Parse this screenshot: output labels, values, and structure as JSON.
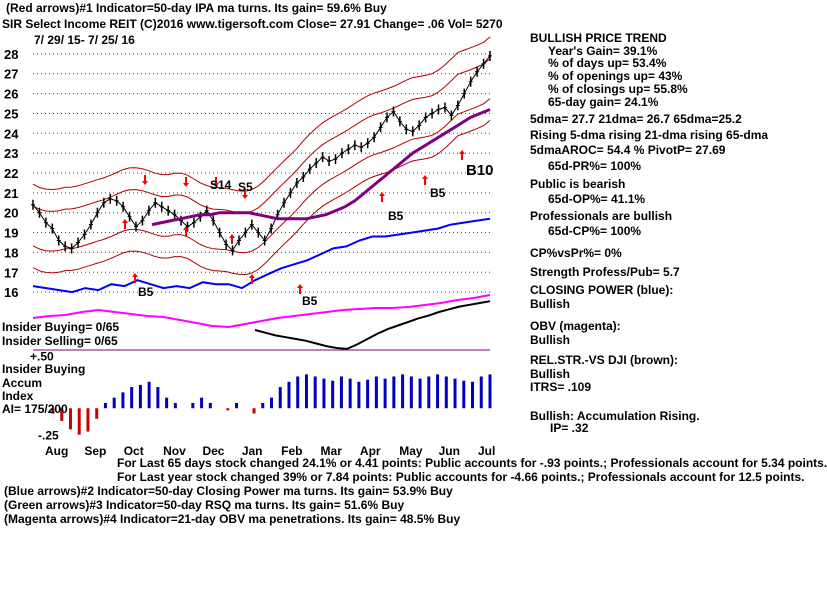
{
  "header": {
    "line1": "(Red arrows)#1 Indicator=50-day IPA ma turns. Its gain= 59.6% Buy",
    "line2": "SIR   Select Income REIT   (C)2016 www.tigersoft.com      Close=  27.91  Change= .06 Vol= 5270",
    "date_range": "7/ 29/ 15-  7/ 25/ 16"
  },
  "chart_data": {
    "type": "line",
    "price_axis": {
      "ticks": [
        28,
        27,
        26,
        25,
        24,
        23,
        22,
        21,
        20,
        19,
        18,
        17,
        16
      ],
      "ylim": [
        15.3,
        28.7
      ]
    },
    "months": [
      "Aug",
      "Sep",
      "Oct",
      "Nov",
      "Dec",
      "Jan",
      "Feb",
      "Mar",
      "Apr",
      "May",
      "Jun",
      "Jul"
    ],
    "price_path": [
      20.4,
      20.0,
      19.5,
      19.2,
      18.6,
      18.3,
      18.2,
      18.5,
      18.9,
      19.4,
      20.0,
      20.5,
      20.7,
      20.6,
      20.3,
      19.8,
      19.3,
      19.6,
      20.1,
      20.5,
      20.3,
      20.1,
      19.9,
      19.6,
      19.3,
      19.5,
      19.8,
      20.1,
      19.6,
      19.0,
      18.4,
      18.1,
      18.6,
      19.0,
      19.4,
      19.0,
      18.6,
      19.2,
      19.9,
      20.5,
      21.0,
      21.5,
      21.8,
      22.2,
      22.5,
      22.8,
      22.6,
      22.7,
      23.0,
      23.2,
      23.4,
      23.3,
      23.5,
      23.8,
      24.3,
      24.8,
      25.1,
      24.6,
      24.2,
      24.1,
      24.4,
      24.8,
      25.0,
      25.2,
      25.3,
      24.9,
      25.4,
      26.0,
      26.6,
      27.1,
      27.5,
      27.9
    ],
    "ma_path": [
      19.4,
      19.5,
      19.6,
      19.7,
      19.8,
      19.9,
      19.9,
      20.0,
      20.0,
      20.0,
      20.0,
      19.9,
      19.8,
      19.7,
      19.7,
      19.7,
      19.7,
      19.8,
      19.9,
      20.1,
      20.3,
      20.6,
      21.0,
      21.4,
      21.8,
      22.2,
      22.6,
      23.0,
      23.3,
      23.6,
      23.9,
      24.2,
      24.5,
      24.8,
      25.0,
      25.2
    ],
    "closing_power_path": [
      16.3,
      16.2,
      16.1,
      16.0,
      16.2,
      16.1,
      16.4,
      16.3,
      16.6,
      16.4,
      16.2,
      16.3,
      16.2,
      16.5,
      16.4,
      16.4,
      16.2,
      16.6,
      16.9,
      17.2,
      17.4,
      17.6,
      17.9,
      18.2,
      18.3,
      18.6,
      18.8,
      18.8,
      18.9,
      19.0,
      19.1,
      19.2,
      19.4,
      19.5,
      19.6,
      19.7
    ],
    "signals": [
      {
        "label": "S14",
        "color": "#000000"
      },
      {
        "label": "S5",
        "color": "#000000"
      },
      {
        "label": "B5",
        "color": "#000000"
      },
      {
        "label": "B5",
        "color": "#000000"
      },
      {
        "label": "B5",
        "color": "#000000"
      },
      {
        "label": "B5",
        "color": "#000000"
      },
      {
        "label": "B10",
        "color": "#000000"
      }
    ],
    "accum_values": [
      -0.05,
      -0.12,
      -0.2,
      -0.25,
      -0.22,
      -0.1,
      0.05,
      0.1,
      0.15,
      0.2,
      0.22,
      0.25,
      0.2,
      0.1,
      0.05,
      0.0,
      0.05,
      0.1,
      0.05,
      0.0,
      -0.02,
      0.05,
      0.0,
      -0.05,
      0.05,
      0.1,
      0.2,
      0.25,
      0.3,
      0.32,
      0.3,
      0.28,
      0.26,
      0.3,
      0.28,
      0.25,
      0.27,
      0.3,
      0.28,
      0.3,
      0.32,
      0.3,
      0.28,
      0.3,
      0.32,
      0.3,
      0.28,
      0.26,
      0.25,
      0.3,
      0.32
    ],
    "accum_axis": {
      "labels": [
        "+.50",
        "-.25"
      ],
      "ylim": [
        -0.3,
        0.55
      ]
    },
    "colors": {
      "price": "#000000",
      "bands": "#b00000",
      "ma": "#800080",
      "closing_power": "#0000ff",
      "obv": "#ff00ff",
      "grid": "#008000",
      "accum_pos": "#0000c0",
      "accum_neg": "#cc0000",
      "arrow_red": "#ff0000",
      "arrow_green": "#00a000"
    }
  },
  "insider": {
    "buying": "Insider Buying= 0/65",
    "selling": "Insider Selling= 0/65",
    "title": "Insider Buying",
    "accum_label_1": "Accum",
    "accum_label_2": "Index",
    "ai": "AI= 175/200"
  },
  "right_panel": {
    "title": "BULLISH PRICE TREND",
    "yg": "Year's Gain= 39.1%",
    "days_up": "% of days up= 53.4%",
    "openings_up": "% of openings up= 43%",
    "closings_up": "% of closings up= 55.8%",
    "gain65": "65-day gain= 24.1%",
    "dma": "5dma= 27.7 21dma= 26.7 65dma=25.2",
    "rising": "Rising 5-dma rising 21-dma rising 65-dma",
    "aroc": "5dmaAROC= 54.4 %  PivotP= 27.69",
    "pr": "65d-PR%= 100%",
    "public": "Public is bearish",
    "op": "65d-OP%= 41.1%",
    "pros": "Professionals are bullish",
    "cp": "65d-CP%= 100%",
    "cpvspr": "CP%vsPr%=  0%",
    "strength": "Strength Profess/Pub= 5.7",
    "closing_power_title": "CLOSING POWER (blue):",
    "closing_power_val": "Bullish",
    "obv_title": "OBV (magenta):",
    "obv_val": "Bullish",
    "relstr_title": "REL.STR.-VS DJI (brown):",
    "relstr_val": "Bullish",
    "itrs": "ITRS= .109",
    "accum_title": "Bullish: Accumulation Rising.",
    "ip": "IP=  .32"
  },
  "footer": {
    "line1": "For Last 65 days stock changed  24.1% or  4.41 points:  Public accounts for -.93 points.;  Professionals account for  5.34 points.",
    "line2": "For Last year stock changed  39% or  7.84 points:  Public accounts for -4.66 points.;  Professionals account for  12.5 points.",
    "line3": "(Blue arrows)#2 Indicator=50-day Closing Power ma turns. Its gain= 53.9% Buy",
    "line4": "(Green arrows)#3 Indicator=50-day RSQ ma turns. Its gain= 51.6% Buy",
    "line5": "(Magenta arrows)#4 Indicator=21-day OBV ma penetrations. Its gain= 48.5% Buy"
  }
}
